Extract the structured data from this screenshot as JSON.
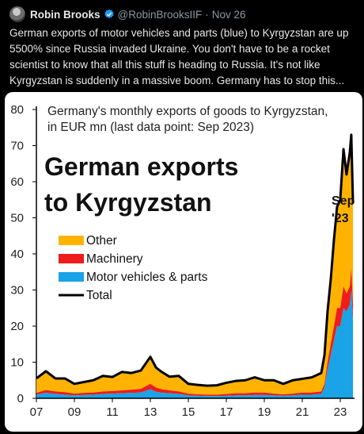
{
  "tweet": {
    "author_name": "Robin Brooks",
    "handle": "@RobinBrooksIIF",
    "separator": "·",
    "date": "Nov 26",
    "text_lines": [
      "German exports of motor vehicles and parts (blue) to Kyrgyzstan are up",
      "5500% since Russia invaded Ukraine. You don't have to be a rocket",
      "scientist to know that all this stuff is heading to Russia. It's not like",
      "Kyrgyzstan is suddenly in a massive boom. Germany has to stop this..."
    ]
  },
  "colors": {
    "verified": "#1d9bf0",
    "other": "#ffb300",
    "machinery": "#ee1c1c",
    "motor": "#1aa3e6",
    "total": "#000000"
  },
  "chart_data": {
    "type": "area",
    "title": "Germany's monthly exports of goods to Kyrgyzstan,",
    "subtitle": "in EUR mn (last data point: Sep 2023)",
    "annotation_title_1": "German exports",
    "annotation_title_2": "to Kyrgyzstan",
    "end_label_1": "Sep",
    "end_label_2": "'23",
    "x_tick_labels": [
      "07",
      "09",
      "11",
      "13",
      "15",
      "17",
      "19",
      "21",
      "23"
    ],
    "x_ticks": [
      2007,
      2009,
      2011,
      2013,
      2015,
      2017,
      2019,
      2021,
      2023
    ],
    "xlim": [
      2007,
      2023.75
    ],
    "y_tick_labels": [
      "0",
      "10",
      "20",
      "30",
      "40",
      "50",
      "60",
      "70",
      "80"
    ],
    "ylim": [
      0,
      80
    ],
    "legend_position": "left-middle",
    "legend": [
      "Other",
      "Machinery",
      "Motor vehicles & parts",
      "Total"
    ],
    "x": [
      2007.0,
      2007.5,
      2008.0,
      2008.5,
      2009.0,
      2009.5,
      2010.0,
      2010.5,
      2011.0,
      2011.5,
      2012.0,
      2012.5,
      2013.0,
      2013.3,
      2013.6,
      2014.0,
      2014.5,
      2015.0,
      2015.5,
      2016.0,
      2016.5,
      2017.0,
      2017.5,
      2018.0,
      2018.5,
      2019.0,
      2019.5,
      2020.0,
      2020.5,
      2021.0,
      2021.5,
      2022.0,
      2022.17,
      2022.33,
      2022.5,
      2022.67,
      2022.83,
      2023.0,
      2023.17,
      2023.33,
      2023.5,
      2023.58,
      2023.67
    ],
    "series": [
      {
        "name": "Motor vehicles & parts",
        "values": [
          1.0,
          1.5,
          1.2,
          1.0,
          0.8,
          0.9,
          1.0,
          1.2,
          1.3,
          1.4,
          1.5,
          1.6,
          2.5,
          1.8,
          1.5,
          1.4,
          1.2,
          0.8,
          0.7,
          0.6,
          0.6,
          0.7,
          0.8,
          0.8,
          0.9,
          0.9,
          0.8,
          0.7,
          0.8,
          1.0,
          1.0,
          1.2,
          3.0,
          8.0,
          12.0,
          16.0,
          20.0,
          20.0,
          25.0,
          24.0,
          26.0,
          30.0,
          21.0
        ]
      },
      {
        "name": "Machinery",
        "values": [
          0.5,
          0.8,
          0.7,
          0.7,
          0.5,
          0.6,
          0.6,
          0.7,
          0.7,
          0.8,
          0.9,
          1.0,
          1.5,
          1.2,
          1.0,
          0.8,
          0.7,
          0.5,
          0.4,
          0.4,
          0.4,
          0.5,
          0.6,
          0.6,
          0.7,
          0.7,
          0.5,
          0.4,
          0.5,
          0.6,
          0.6,
          0.7,
          1.0,
          2.0,
          3.0,
          4.0,
          5.0,
          5.0,
          6.0,
          5.0,
          5.0,
          6.0,
          5.0
        ]
      },
      {
        "name": "Other",
        "values": [
          4.0,
          5.2,
          3.6,
          3.8,
          2.7,
          3.0,
          3.4,
          4.3,
          3.9,
          5.1,
          4.6,
          5.1,
          7.5,
          5.5,
          4.8,
          3.8,
          4.3,
          2.7,
          2.6,
          2.5,
          2.6,
          3.1,
          3.4,
          3.6,
          4.2,
          3.4,
          3.7,
          2.9,
          3.7,
          3.8,
          4.2,
          5.1,
          8.0,
          14.0,
          18.0,
          24.0,
          28.0,
          30.0,
          38.0,
          33.0,
          37.0,
          37.0,
          28.0
        ]
      },
      {
        "name": "Total",
        "values": [
          5.5,
          7.5,
          5.5,
          5.5,
          4.0,
          4.5,
          5.0,
          6.2,
          5.9,
          7.3,
          7.0,
          7.7,
          11.5,
          8.5,
          7.3,
          6.0,
          6.2,
          4.0,
          3.7,
          3.5,
          3.6,
          4.3,
          4.8,
          5.0,
          5.8,
          5.0,
          5.0,
          4.0,
          5.0,
          5.4,
          5.8,
          7.0,
          12.0,
          24.0,
          33.0,
          44.0,
          53.0,
          55.0,
          69.0,
          62.0,
          68.0,
          73.0,
          54.0
        ]
      }
    ]
  }
}
